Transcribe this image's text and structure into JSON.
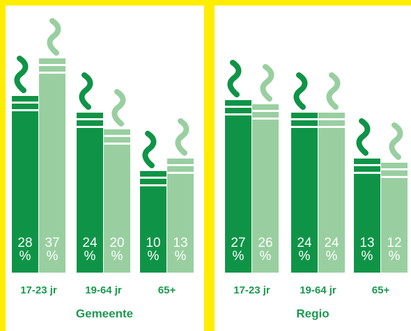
{
  "chart_data": [
    {
      "type": "bar",
      "title": "Gemeente",
      "categories": [
        "17-23 jr",
        "19-64 jr",
        "65+"
      ],
      "unit": "%",
      "series": [
        {
          "color": "#0f9447",
          "values": [
            28,
            24,
            10
          ]
        },
        {
          "color": "#99cfa0",
          "values": [
            37,
            20,
            13
          ]
        }
      ]
    },
    {
      "type": "bar",
      "title": "Regio",
      "categories": [
        "17-23 jr",
        "19-64 jr",
        "65+"
      ],
      "unit": "%",
      "series": [
        {
          "color": "#0f9447",
          "values": [
            27,
            24,
            13
          ]
        },
        {
          "color": "#99cfa0",
          "values": [
            26,
            24,
            12
          ]
        }
      ]
    }
  ]
}
